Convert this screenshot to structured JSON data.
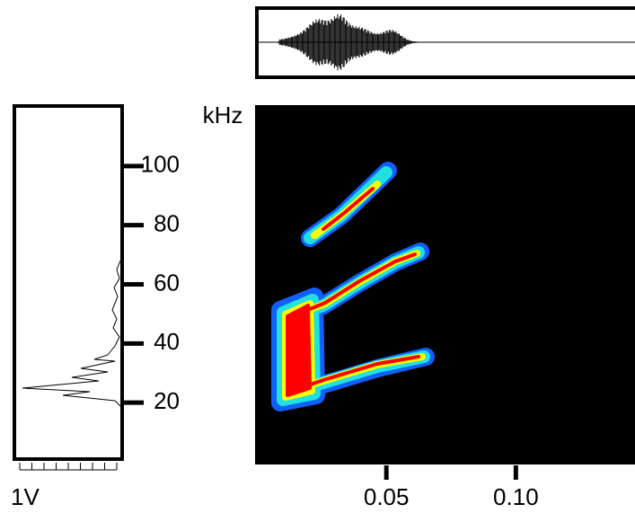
{
  "chart_data": {
    "type": "spectrogram",
    "y_label": "kHz",
    "ylim": [
      0,
      120
    ],
    "yticks": [
      20,
      40,
      60,
      80,
      100
    ],
    "xlim": [
      0,
      0.146
    ],
    "xticks": [
      0.05,
      {
        "value": 0.1,
        "label": "0.10"
      }
    ],
    "amplitude_label": "1V"
  }
}
